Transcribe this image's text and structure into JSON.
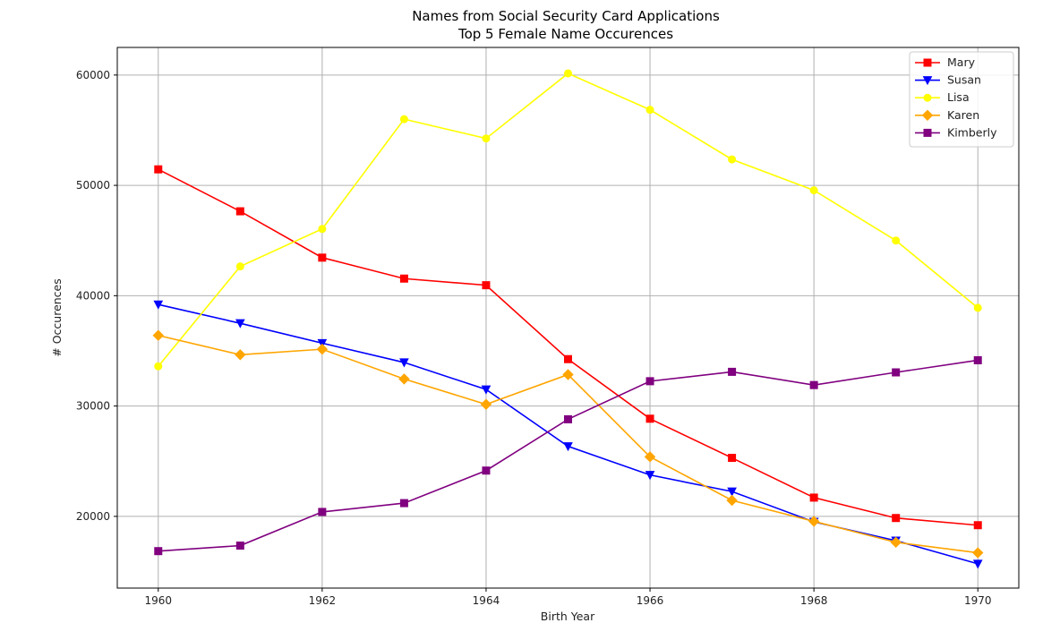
{
  "chart_data": {
    "type": "line",
    "title": "Names from Social Security Card Applications",
    "subtitle": "Top 5 Female Name Occurences",
    "xlabel": "Birth Year",
    "ylabel": "# Occurences",
    "xlim": [
      1959.5,
      1970.5
    ],
    "ylim": [
      13500,
      62500
    ],
    "x": [
      1960,
      1961,
      1962,
      1963,
      1964,
      1965,
      1966,
      1967,
      1968,
      1969,
      1970
    ],
    "xticks": [
      1960,
      1962,
      1964,
      1966,
      1968,
      1970
    ],
    "yticks": [
      20000,
      30000,
      40000,
      50000,
      60000
    ],
    "grid": true,
    "legend_position": "top-right",
    "series": [
      {
        "name": "Mary",
        "color": "#ff0000",
        "marker": "square",
        "values": [
          51450,
          47650,
          43450,
          41550,
          40950,
          34250,
          28850,
          25300,
          21700,
          19850,
          19200
        ]
      },
      {
        "name": "Susan",
        "color": "#0000ff",
        "marker": "triangle-down",
        "values": [
          39200,
          37500,
          35700,
          33950,
          31500,
          26350,
          23750,
          22250,
          19500,
          17800,
          15700
        ]
      },
      {
        "name": "Lisa",
        "color": "#ffff00",
        "marker": "circle",
        "values": [
          33600,
          42650,
          46050,
          56000,
          54250,
          60150,
          56850,
          52350,
          49550,
          45000,
          38900
        ]
      },
      {
        "name": "Karen",
        "color": "#ffa500",
        "marker": "diamond",
        "values": [
          36400,
          34650,
          35150,
          32450,
          30150,
          32850,
          25400,
          21450,
          19550,
          17650,
          16700
        ]
      },
      {
        "name": "Kimberly",
        "color": "#800080",
        "marker": "square",
        "values": [
          16850,
          17350,
          20400,
          21200,
          24150,
          28800,
          32250,
          33100,
          31900,
          33050,
          34150
        ]
      }
    ]
  }
}
